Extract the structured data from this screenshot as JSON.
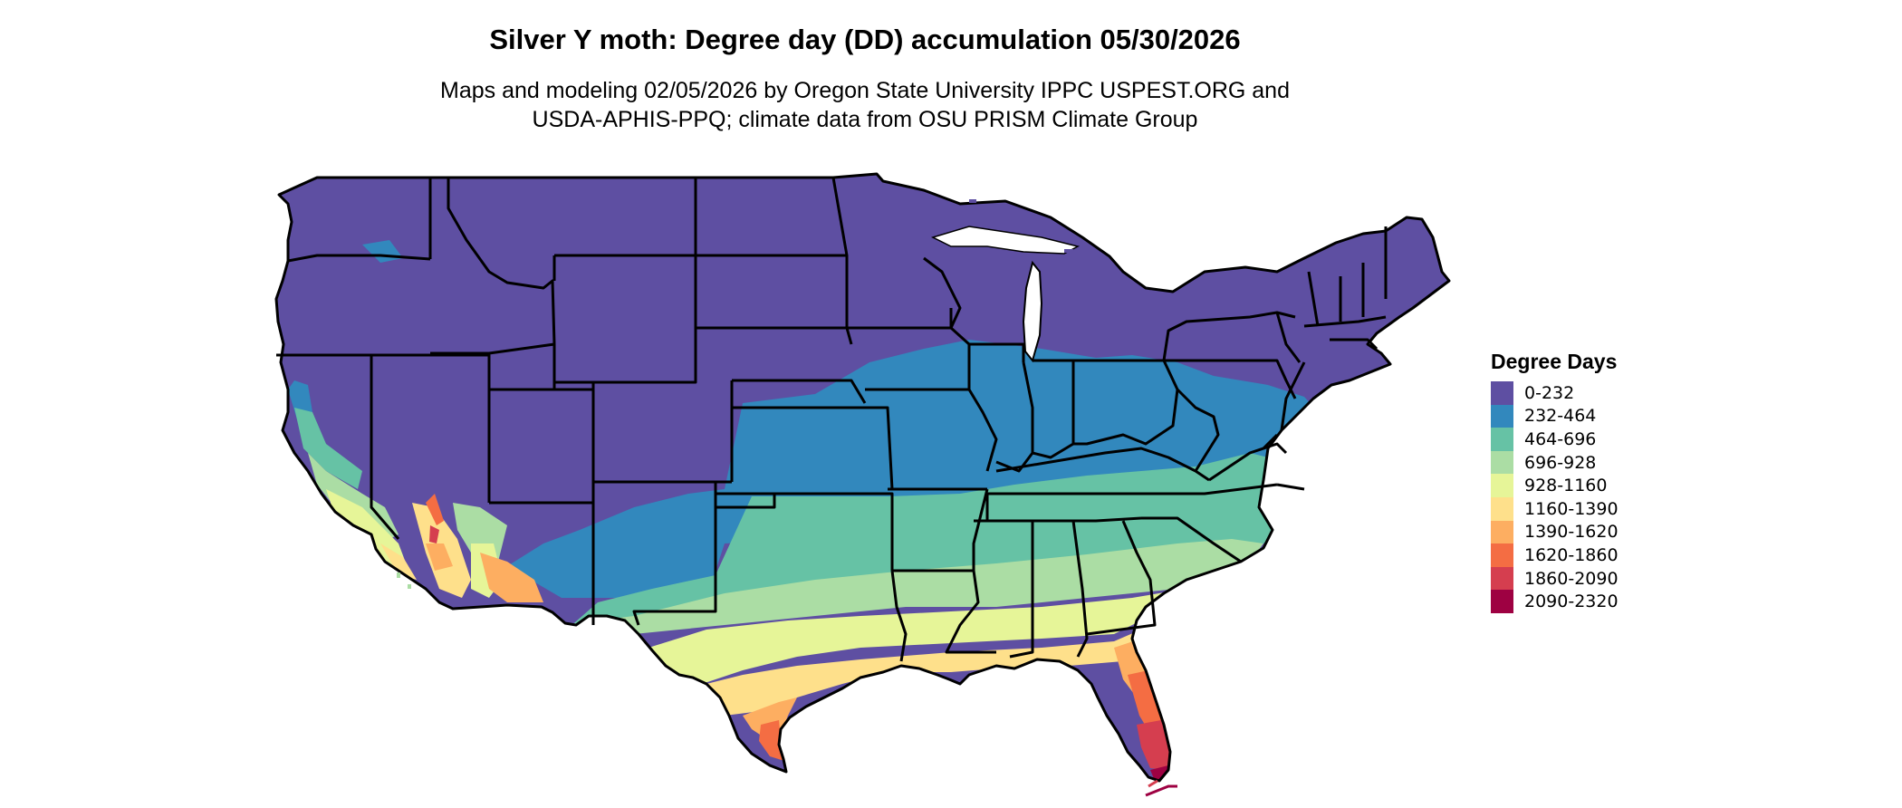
{
  "header": {
    "title": "Silver Y moth: Degree day (DD) accumulation 05/30/2026",
    "subtitle_line1": "Maps and modeling 02/05/2026 by Oregon State University IPPC USPEST.ORG and",
    "subtitle_line2": "USDA-APHIS-PPQ; climate data from OSU PRISM Climate Group"
  },
  "legend": {
    "title": "Degree Days",
    "items": [
      {
        "label": "0-232",
        "color": "#5e4fa2"
      },
      {
        "label": "232-464",
        "color": "#3288bd"
      },
      {
        "label": "464-696",
        "color": "#66c2a5"
      },
      {
        "label": "696-928",
        "color": "#abdda4"
      },
      {
        "label": "928-1160",
        "color": "#e6f598"
      },
      {
        "label": "1160-1390",
        "color": "#fee08b"
      },
      {
        "label": "1390-1620",
        "color": "#fdae61"
      },
      {
        "label": "1620-1860",
        "color": "#f46d43"
      },
      {
        "label": "1860-2090",
        "color": "#d53e4f"
      },
      {
        "label": "2090-2320",
        "color": "#9e0142"
      }
    ]
  },
  "map": {
    "region": "Contiguous United States",
    "border_color": "#000000"
  }
}
